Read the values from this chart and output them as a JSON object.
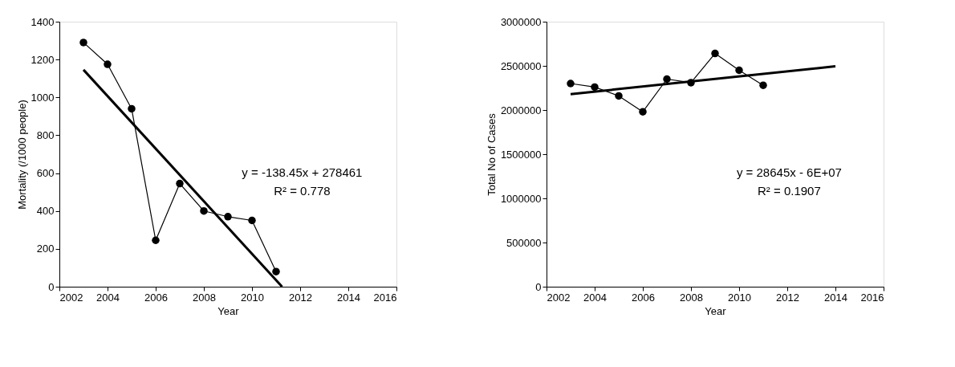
{
  "chart_data": [
    {
      "type": "line",
      "xlabel": "Year",
      "ylabel": "Mortality (/1000 people)",
      "x": [
        2003,
        2004,
        2005,
        2006,
        2007,
        2008,
        2009,
        2010,
        2011
      ],
      "series": [
        {
          "color": "#000000",
          "marker": "circle",
          "values": [
            1290,
            1175,
            940,
            245,
            545,
            400,
            370,
            350,
            80
          ]
        },
        {
          "color": "#000000",
          "marker": "none",
          "x": [
            2003,
            2011.25
          ],
          "values": [
            1146,
            0
          ]
        }
      ],
      "xlim": [
        2002,
        2016
      ],
      "xticks": [
        2002,
        2004,
        2006,
        2008,
        2010,
        2012,
        2014,
        2016
      ],
      "ylim": [
        0,
        1400
      ],
      "yticks": [
        0,
        200,
        400,
        600,
        800,
        1000,
        1200,
        1400
      ],
      "grid": false,
      "annotations": [
        "y = -138.45x + 278461",
        "R² = 0.778"
      ]
    },
    {
      "type": "line",
      "xlabel": "Year",
      "ylabel": "Total No of Cases",
      "x": [
        2003,
        2004,
        2005,
        2006,
        2007,
        2008,
        2009,
        2010,
        2011
      ],
      "series": [
        {
          "color": "#000000",
          "marker": "circle",
          "values": [
            2300000,
            2260000,
            2160000,
            1980000,
            2350000,
            2310000,
            2640000,
            2450000,
            2280000
          ]
        },
        {
          "color": "#000000",
          "marker": "none",
          "x": [
            2003,
            2014
          ],
          "values": [
            2180000,
            2495000
          ]
        }
      ],
      "xlim": [
        2002,
        2016
      ],
      "xticks": [
        2002,
        2004,
        2006,
        2008,
        2010,
        2012,
        2014,
        2016
      ],
      "ylim": [
        0,
        3000000
      ],
      "yticks": [
        0,
        500000,
        1000000,
        1500000,
        2000000,
        2500000,
        3000000
      ],
      "grid": false,
      "annotations": [
        "y = 28645x - 6E+07",
        "R² = 0.1907"
      ]
    }
  ]
}
